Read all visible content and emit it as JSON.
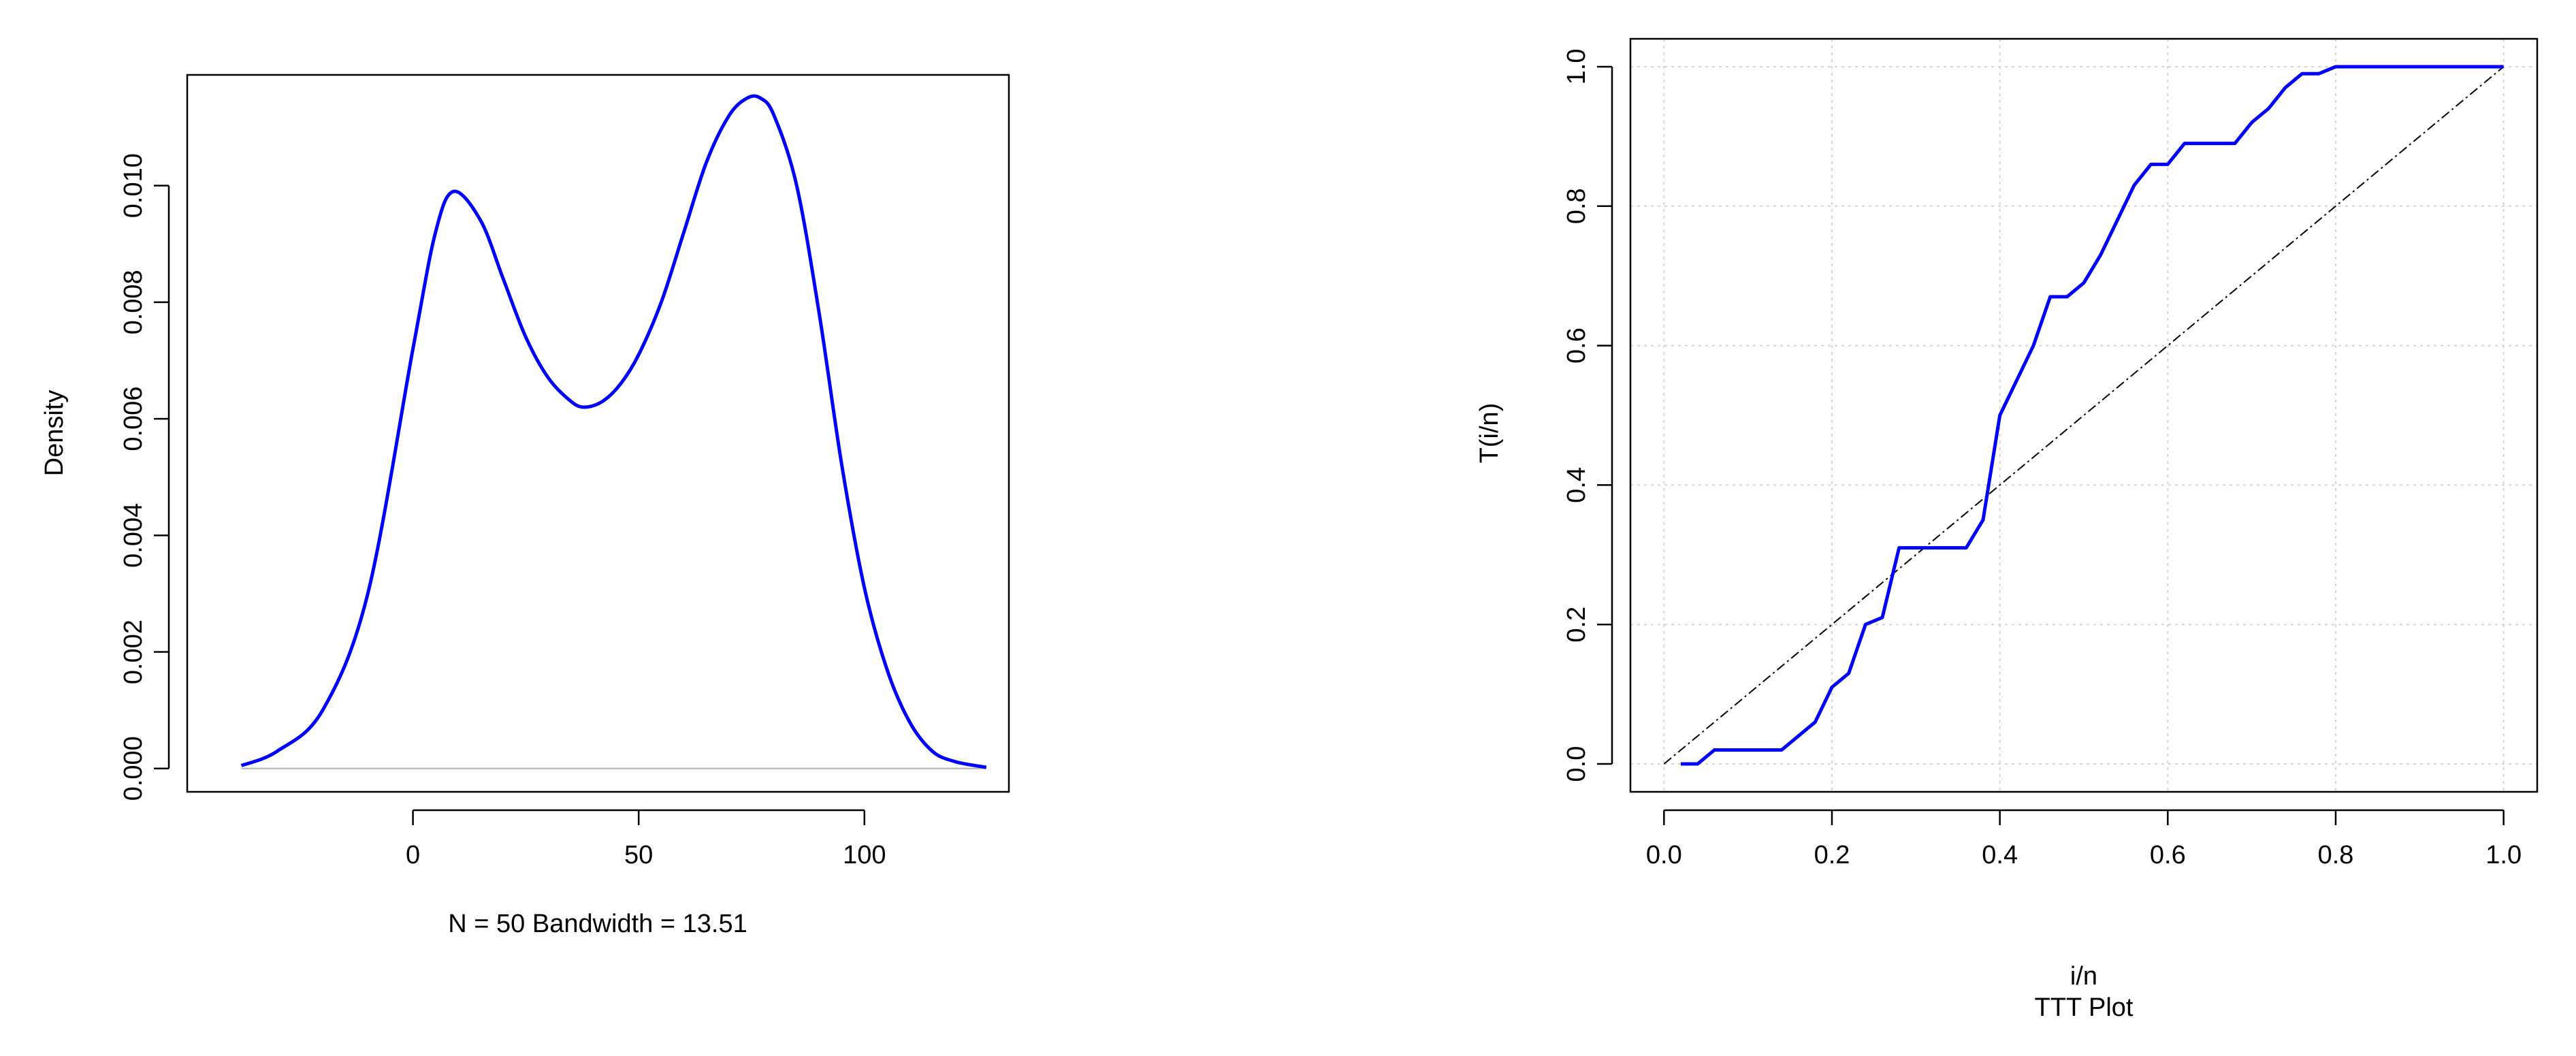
{
  "chart_data": [
    {
      "type": "line",
      "title": "",
      "xlabel": "N = 50   Bandwidth = 13.51",
      "ylabel": "Density",
      "xlim": [
        -50,
        132
      ],
      "ylim": [
        -0.0004,
        0.0119
      ],
      "x_ticks": [
        0,
        50,
        100
      ],
      "x_tick_labels": [
        "0",
        "50",
        "100"
      ],
      "y_ticks": [
        0.0,
        0.002,
        0.004,
        0.006,
        0.008,
        0.01
      ],
      "y_tick_labels": [
        "0.000",
        "0.002",
        "0.004",
        "0.006",
        "0.008",
        "0.010"
      ],
      "grid": false,
      "baseline": 0,
      "colors": {
        "line": "#0000ff",
        "baseline": "#bebebe"
      },
      "series": [
        {
          "x": [
            -38,
            -30,
            -20,
            -10,
            0,
            5,
            9,
            15,
            20,
            25,
            30,
            35,
            38,
            42,
            46,
            50,
            55,
            60,
            65,
            70,
            74,
            77,
            80,
            85,
            90,
            95,
            100,
            105,
            110,
            115,
            120,
            127
          ],
          "values": [
            5e-05,
            0.0003,
            0.001,
            0.003,
            0.0072,
            0.0092,
            0.0099,
            0.0094,
            0.0084,
            0.0074,
            0.0067,
            0.0063,
            0.0062,
            0.0063,
            0.0066,
            0.0071,
            0.008,
            0.0092,
            0.0104,
            0.0112,
            0.0115,
            0.0115,
            0.0112,
            0.01,
            0.0078,
            0.0052,
            0.0031,
            0.0017,
            0.0008,
            0.0003,
            0.00012,
            2e-05
          ]
        }
      ]
    },
    {
      "type": "line",
      "title": "TTT Plot",
      "xlabel": "i/n",
      "ylabel": "T(i/n)",
      "xlim": [
        -0.04,
        1.04
      ],
      "ylim": [
        -0.04,
        1.04
      ],
      "x_ticks": [
        0.0,
        0.2,
        0.4,
        0.6,
        0.8,
        1.0
      ],
      "x_tick_labels": [
        "0.0",
        "0.2",
        "0.4",
        "0.6",
        "0.8",
        "1.0"
      ],
      "y_ticks": [
        0.0,
        0.2,
        0.4,
        0.6,
        0.8,
        1.0
      ],
      "y_tick_labels": [
        "0.0",
        "0.2",
        "0.4",
        "0.6",
        "0.8",
        "1.0"
      ],
      "grid": true,
      "colors": {
        "line": "#0000ff",
        "diagonal": "#000000",
        "grid": "#d3d3d3"
      },
      "series": [
        {
          "x": [
            0.02,
            0.04,
            0.06,
            0.08,
            0.14,
            0.16,
            0.18,
            0.2,
            0.22,
            0.24,
            0.26,
            0.28,
            0.3,
            0.32,
            0.34,
            0.36,
            0.38,
            0.4,
            0.42,
            0.44,
            0.46,
            0.48,
            0.5,
            0.52,
            0.54,
            0.56,
            0.58,
            0.6,
            0.62,
            0.64,
            0.66,
            0.68,
            0.7,
            0.72,
            0.74,
            0.76,
            0.78,
            0.8,
            0.82,
            0.88,
            1.0
          ],
          "values": [
            0.0,
            0.0,
            0.02,
            0.02,
            0.02,
            0.04,
            0.06,
            0.11,
            0.13,
            0.2,
            0.21,
            0.31,
            0.31,
            0.31,
            0.31,
            0.31,
            0.35,
            0.5,
            0.55,
            0.6,
            0.67,
            0.67,
            0.69,
            0.73,
            0.78,
            0.83,
            0.86,
            0.86,
            0.89,
            0.89,
            0.89,
            0.89,
            0.92,
            0.94,
            0.97,
            0.99,
            0.99,
            1.0,
            1.0,
            1.0,
            1.0
          ]
        },
        {
          "x": [
            0.0,
            1.0
          ],
          "values": [
            0.0,
            1.0
          ]
        }
      ]
    }
  ]
}
